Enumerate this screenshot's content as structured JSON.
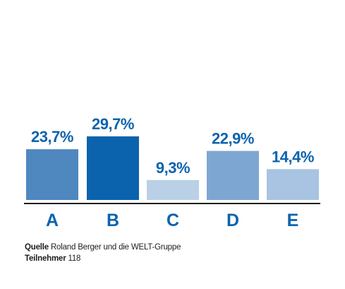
{
  "chart_data": {
    "type": "bar",
    "categories": [
      "A",
      "B",
      "C",
      "D",
      "E"
    ],
    "values": [
      23.7,
      29.7,
      9.3,
      22.9,
      14.4
    ],
    "value_labels": [
      "23,7%",
      "29,7%",
      "9,3%",
      "22,9%",
      "14,4%"
    ],
    "bar_colors": [
      "#4f87bf",
      "#0b63ad",
      "#b9d0e6",
      "#7ea6d2",
      "#a8c4e2"
    ],
    "label_color": "#0b63ad",
    "ylim": [
      0,
      30
    ],
    "grid": false,
    "legend": "none"
  },
  "footnotes": {
    "source_key": "Quelle",
    "source_value": "Roland Berger und die WELT-Gruppe",
    "participants_key": "Teilnehmer",
    "participants_value": "118"
  }
}
